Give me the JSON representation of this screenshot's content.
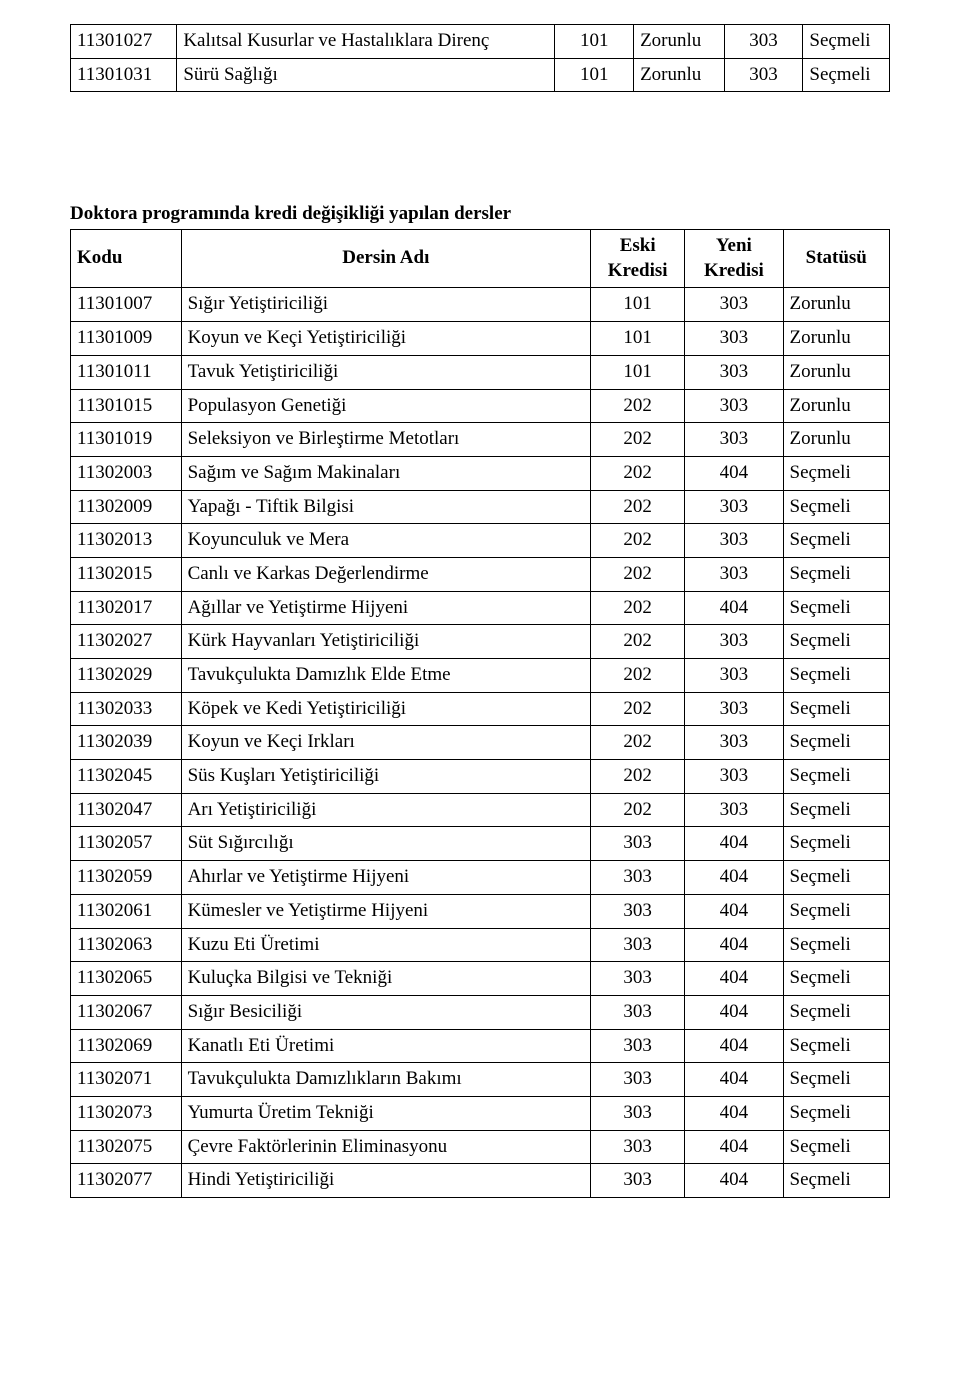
{
  "colors": {
    "text": "#000000",
    "background": "#ffffff",
    "border": "#000000"
  },
  "top_table": {
    "rows": [
      {
        "code": "11301027",
        "name": "Kalıtsal Kusurlar ve Hastalıklara Direnç",
        "c1": "101",
        "c2": "Zorunlu",
        "c3": "303",
        "c4": "Seçmeli"
      },
      {
        "code": "11301031",
        "name": "Sürü Sağlığı",
        "c1": "101",
        "c2": "Zorunlu",
        "c3": "303",
        "c4": "Seçmeli"
      }
    ]
  },
  "section_title": "Doktora programında kredi değişikliği yapılan dersler",
  "main_table": {
    "headers": {
      "code": "Kodu",
      "name": "Dersin Adı",
      "eski": "Eski Kredisi",
      "yeni": "Yeni Kredisi",
      "status": "Statüsü"
    },
    "rows": [
      {
        "code": "11301007",
        "name": "Sığır Yetiştiriciliği",
        "eski": "101",
        "yeni": "303",
        "status": "Zorunlu"
      },
      {
        "code": "11301009",
        "name": "Koyun ve Keçi Yetiştiriciliği",
        "eski": "101",
        "yeni": "303",
        "status": "Zorunlu"
      },
      {
        "code": "11301011",
        "name": "Tavuk Yetiştiriciliği",
        "eski": "101",
        "yeni": "303",
        "status": "Zorunlu"
      },
      {
        "code": "11301015",
        "name": "Populasyon Genetiği",
        "eski": "202",
        "yeni": "303",
        "status": "Zorunlu"
      },
      {
        "code": "11301019",
        "name": "Seleksiyon ve Birleştirme Metotları",
        "eski": "202",
        "yeni": "303",
        "status": "Zorunlu"
      },
      {
        "code": "11302003",
        "name": "Sağım ve Sağım Makinaları",
        "eski": "202",
        "yeni": "404",
        "status": "Seçmeli"
      },
      {
        "code": "11302009",
        "name": "Yapağı - Tiftik Bilgisi",
        "eski": "202",
        "yeni": "303",
        "status": "Seçmeli"
      },
      {
        "code": "11302013",
        "name": "Koyunculuk ve Mera",
        "eski": "202",
        "yeni": "303",
        "status": "Seçmeli"
      },
      {
        "code": "11302015",
        "name": "Canlı ve Karkas Değerlendirme",
        "eski": "202",
        "yeni": "303",
        "status": "Seçmeli"
      },
      {
        "code": "11302017",
        "name": "Ağıllar ve Yetiştirme Hijyeni",
        "eski": "202",
        "yeni": "404",
        "status": "Seçmeli"
      },
      {
        "code": "11302027",
        "name": "Kürk Hayvanları Yetiştiriciliği",
        "eski": "202",
        "yeni": "303",
        "status": "Seçmeli"
      },
      {
        "code": "11302029",
        "name": "Tavukçulukta Damızlık Elde Etme",
        "eski": "202",
        "yeni": "303",
        "status": "Seçmeli"
      },
      {
        "code": "11302033",
        "name": "Köpek ve Kedi Yetiştiriciliği",
        "eski": "202",
        "yeni": "303",
        "status": "Seçmeli"
      },
      {
        "code": "11302039",
        "name": "Koyun ve Keçi Irkları",
        "eski": "202",
        "yeni": "303",
        "status": "Seçmeli"
      },
      {
        "code": "11302045",
        "name": "Süs Kuşları Yetiştiriciliği",
        "eski": "202",
        "yeni": "303",
        "status": "Seçmeli"
      },
      {
        "code": "11302047",
        "name": "Arı Yetiştiriciliği",
        "eski": "202",
        "yeni": "303",
        "status": "Seçmeli"
      },
      {
        "code": "11302057",
        "name": "Süt Sığırcılığı",
        "eski": "303",
        "yeni": "404",
        "status": "Seçmeli"
      },
      {
        "code": "11302059",
        "name": "Ahırlar ve Yetiştirme Hijyeni",
        "eski": "303",
        "yeni": "404",
        "status": "Seçmeli"
      },
      {
        "code": "11302061",
        "name": "Kümesler ve Yetiştirme Hijyeni",
        "eski": "303",
        "yeni": "404",
        "status": "Seçmeli"
      },
      {
        "code": "11302063",
        "name": "Kuzu Eti Üretimi",
        "eski": "303",
        "yeni": "404",
        "status": "Seçmeli"
      },
      {
        "code": "11302065",
        "name": "Kuluçka Bilgisi ve Tekniği",
        "eski": "303",
        "yeni": "404",
        "status": "Seçmeli"
      },
      {
        "code": "11302067",
        "name": "Sığır Besiciliği",
        "eski": "303",
        "yeni": "404",
        "status": "Seçmeli"
      },
      {
        "code": "11302069",
        "name": "Kanatlı Eti Üretimi",
        "eski": "303",
        "yeni": "404",
        "status": "Seçmeli"
      },
      {
        "code": "11302071",
        "name": "Tavukçulukta Damızlıkların Bakımı",
        "eski": "303",
        "yeni": "404",
        "status": "Seçmeli"
      },
      {
        "code": "11302073",
        "name": "Yumurta Üretim Tekniği",
        "eski": "303",
        "yeni": "404",
        "status": "Seçmeli"
      },
      {
        "code": "11302075",
        "name": "Çevre Faktörlerinin Eliminasyonu",
        "eski": "303",
        "yeni": "404",
        "status": "Seçmeli"
      },
      {
        "code": "11302077",
        "name": "Hindi Yetiştiriciliği",
        "eski": "303",
        "yeni": "404",
        "status": "Seçmeli"
      }
    ]
  }
}
